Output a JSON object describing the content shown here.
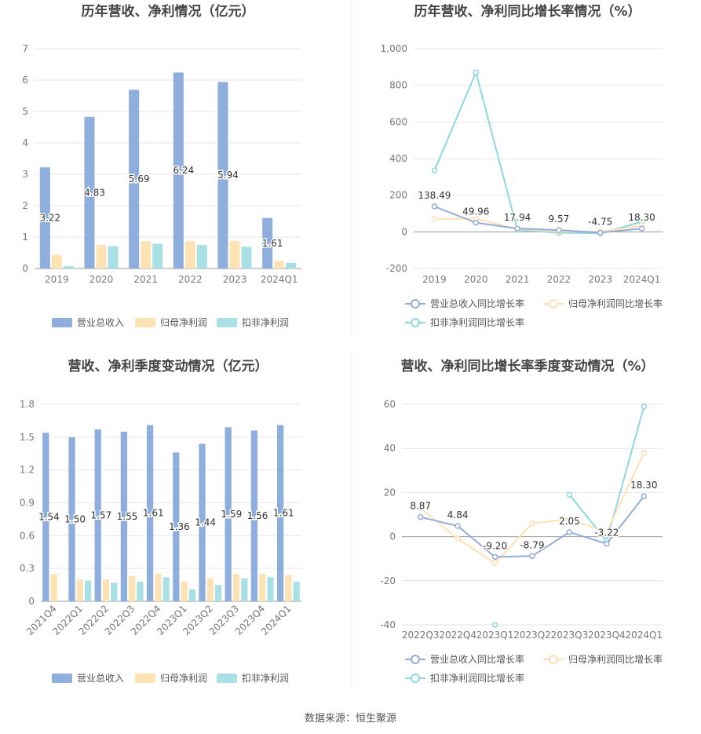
{
  "footer": {
    "source": "数据来源：恒生聚源"
  },
  "colors": {
    "revenue": "#8eaedd",
    "net_profit": "#fde2b4",
    "deducted_profit": "#a8e0e6",
    "revenue_line": "#93acd9",
    "net_profit_line": "#fbe2b4",
    "deducted_line": "#8fd7df"
  },
  "chart_data": [
    {
      "id": "annual-amounts",
      "type": "bar",
      "title": "历年营收、净利情况（亿元）",
      "categories": [
        "2019",
        "2020",
        "2021",
        "2022",
        "2023",
        "2024Q1"
      ],
      "ylim": [
        0,
        7
      ],
      "yticks": [
        "0",
        "1",
        "2",
        "3",
        "4",
        "5",
        "6",
        "7"
      ],
      "series": [
        {
          "name": "营业总收入",
          "values": [
            3.22,
            4.83,
            5.69,
            6.24,
            5.94,
            1.61
          ],
          "labels": [
            "3.22",
            "4.83",
            "5.69",
            "6.24",
            "5.94",
            "1.61"
          ]
        },
        {
          "name": "归母净利润",
          "values": [
            0.43,
            0.75,
            0.87,
            0.87,
            0.88,
            0.24
          ]
        },
        {
          "name": "扣非净利润",
          "values": [
            0.08,
            0.71,
            0.79,
            0.75,
            0.69,
            0.18
          ]
        }
      ],
      "legend": "bottom",
      "grid": true
    },
    {
      "id": "annual-growth",
      "type": "line",
      "title": "历年营收、净利同比增长率情况（%）",
      "categories": [
        "2019",
        "2020",
        "2021",
        "2022",
        "2023",
        "2024Q1"
      ],
      "ylim": [
        -200,
        1000
      ],
      "yticks": [
        "-200",
        "0",
        "200",
        "400",
        "600",
        "800",
        "1,000"
      ],
      "series": [
        {
          "name": "营业总收入同比增长率",
          "values": [
            138.49,
            49.96,
            17.94,
            9.57,
            -4.75,
            18.3
          ],
          "labels": [
            "138.49",
            "49.96",
            "17.94",
            "9.57",
            "-4.75",
            "18.30"
          ]
        },
        {
          "name": "归母净利润同比增长率",
          "values": [
            70,
            72,
            15,
            2,
            1,
            35
          ]
        },
        {
          "name": "扣非净利润同比增长率",
          "values": [
            335,
            870,
            10,
            -5,
            -8,
            55
          ]
        }
      ],
      "legend": "bottom",
      "grid": true
    },
    {
      "id": "quarterly-amounts",
      "type": "bar",
      "title": "营收、净利季度变动情况（亿元）",
      "categories": [
        "2021Q4",
        "2022Q1",
        "2022Q2",
        "2022Q3",
        "2022Q4",
        "2023Q1",
        "2023Q2",
        "2023Q3",
        "2023Q4",
        "2024Q1"
      ],
      "ylim": [
        0,
        1.8
      ],
      "yticks": [
        "0",
        "0.3",
        "0.6",
        "0.9",
        "1.2",
        "1.5",
        "1.8"
      ],
      "series": [
        {
          "name": "营业总收入",
          "values": [
            1.54,
            1.5,
            1.57,
            1.55,
            1.61,
            1.36,
            1.44,
            1.59,
            1.56,
            1.61
          ],
          "labels": [
            "1.54",
            "1.50",
            "1.57",
            "1.55",
            "1.61",
            "1.36",
            "1.44",
            "1.59",
            "1.56",
            "1.61"
          ]
        },
        {
          "name": "归母净利润",
          "values": [
            0.25,
            0.2,
            0.2,
            0.23,
            0.25,
            0.18,
            0.21,
            0.25,
            0.25,
            0.24
          ]
        },
        {
          "name": "扣非净利润",
          "values": [
            0,
            0.19,
            0.17,
            0.18,
            0.22,
            0.11,
            0.15,
            0.21,
            0.22,
            0.18
          ]
        }
      ],
      "legend": "bottom",
      "grid": true
    },
    {
      "id": "quarterly-growth",
      "type": "line",
      "title": "营收、净利同比增长率季度变动情况（%）",
      "categories": [
        "2022Q3",
        "2022Q4",
        "2023Q1",
        "2023Q2",
        "2023Q3",
        "2023Q4",
        "2024Q1"
      ],
      "ylim": [
        -40,
        60
      ],
      "yticks": [
        "-40",
        "-20",
        "0",
        "20",
        "40",
        "60"
      ],
      "series": [
        {
          "name": "营业总收入同比增长率",
          "values": [
            8.87,
            4.84,
            -9.2,
            -8.79,
            2.05,
            -3.22,
            18.3
          ],
          "labels": [
            "8.87",
            "4.84",
            "-9.20",
            "-8.79",
            "2.05",
            "-3.22",
            "18.30"
          ]
        },
        {
          "name": "归母净利润同比增长率",
          "values": [
            13,
            -1,
            -12,
            6,
            8,
            2,
            38
          ]
        },
        {
          "name": "扣非净利润同比增长率",
          "values": [
            null,
            null,
            -40,
            null,
            19,
            -2,
            59
          ]
        }
      ],
      "legend": "bottom",
      "grid": true
    }
  ]
}
